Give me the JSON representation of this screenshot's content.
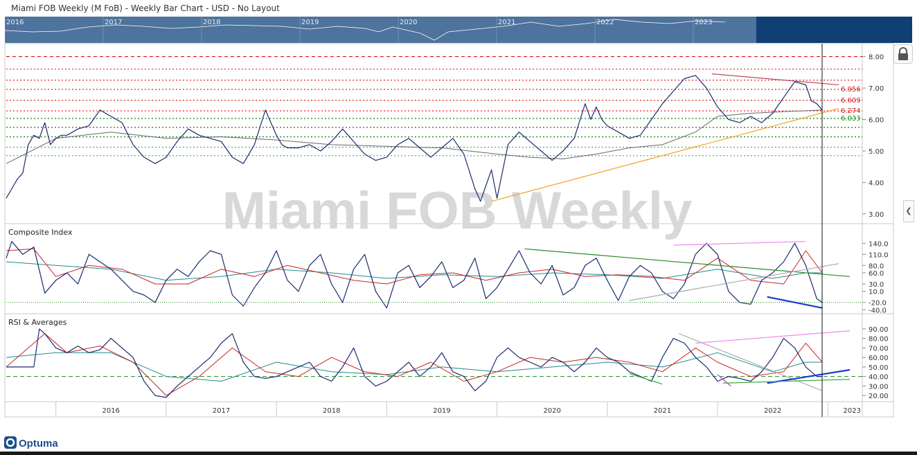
{
  "window": {
    "title": "Miami FOB Weekly (M FoB) - Weekly Bar Chart - USD - No Layout"
  },
  "watermark": "Miami FOB Weekly",
  "brand": {
    "name": "Optuma",
    "color": "#1b4f8a"
  },
  "overview": {
    "years": [
      "2016",
      "2017",
      "2018",
      "2019",
      "2020",
      "2021",
      "2022",
      "2023"
    ],
    "bg": "#4e739c",
    "selection_bg": "#0f3f73"
  },
  "chart_data": [
    {
      "type": "line",
      "panel": "price",
      "title": "",
      "ylim": [
        2.8,
        8.3
      ],
      "yticks": [
        3.0,
        4.0,
        5.0,
        6.0,
        7.0,
        8.0
      ],
      "ytick_labels": [
        "3.00",
        "4.00",
        "5.00",
        "6.00",
        "7.00",
        "8.00"
      ],
      "x_range": [
        2015.55,
        2023.3
      ],
      "xtick_labels": [
        "2016",
        "2017",
        "2018",
        "2019",
        "2020",
        "2021",
        "2022",
        "2023"
      ],
      "levels_red": [
        8.0,
        7.6,
        7.25,
        6.956,
        6.609,
        6.274
      ],
      "levels_green": [
        6.033,
        5.75,
        5.45,
        5.12,
        4.85
      ],
      "level_labels": [
        {
          "text": "6.956",
          "value": 6.956,
          "color": "#cc2222"
        },
        {
          "text": "6.609",
          "value": 6.609,
          "color": "#cc2222"
        },
        {
          "text": "6.274",
          "value": 6.274,
          "color": "#cc2222"
        },
        {
          "text": "6.033",
          "value": 6.033,
          "color": "#1e8a1e"
        }
      ],
      "series": [
        {
          "color": "#1a2a6c",
          "x": [
            2015.55,
            2015.6,
            2015.65,
            2015.7,
            2015.75,
            2015.8,
            2015.85,
            2015.9,
            2015.95,
            2016.0,
            2016.05,
            2016.1,
            2016.2,
            2016.3,
            2016.4,
            2016.5,
            2016.6,
            2016.7,
            2016.8,
            2016.9,
            2017.0,
            2017.1,
            2017.2,
            2017.3,
            2017.4,
            2017.5,
            2017.6,
            2017.7,
            2017.8,
            2017.9,
            2018.0,
            2018.05,
            2018.1,
            2018.2,
            2018.3,
            2018.4,
            2018.5,
            2018.6,
            2018.7,
            2018.8,
            2018.9,
            2019.0,
            2019.1,
            2019.2,
            2019.3,
            2019.4,
            2019.5,
            2019.6,
            2019.7,
            2019.8,
            2019.85,
            2019.9,
            2019.95,
            2020.0,
            2020.1,
            2020.2,
            2020.3,
            2020.4,
            2020.5,
            2020.6,
            2020.7,
            2020.8,
            2020.85,
            2020.9,
            2020.95,
            2021.0,
            2021.1,
            2021.2,
            2021.3,
            2021.4,
            2021.5,
            2021.6,
            2021.7,
            2021.8,
            2021.9,
            2022.0,
            2022.1,
            2022.2,
            2022.3,
            2022.4,
            2022.5,
            2022.6,
            2022.7,
            2022.8,
            2022.85,
            2022.9,
            2022.95
          ],
          "y": [
            3.5,
            3.8,
            4.1,
            4.3,
            5.2,
            5.5,
            5.4,
            5.9,
            5.2,
            5.4,
            5.5,
            5.5,
            5.7,
            5.8,
            6.3,
            6.1,
            5.9,
            5.2,
            4.8,
            4.6,
            4.8,
            5.3,
            5.7,
            5.5,
            5.4,
            5.3,
            4.8,
            4.6,
            5.2,
            6.3,
            5.5,
            5.2,
            5.1,
            5.1,
            5.2,
            5.0,
            5.3,
            5.7,
            5.3,
            4.9,
            4.7,
            4.8,
            5.2,
            5.4,
            5.1,
            4.8,
            5.1,
            5.4,
            4.9,
            3.8,
            3.4,
            3.9,
            4.4,
            3.5,
            5.2,
            5.6,
            5.3,
            5.0,
            4.7,
            5.0,
            5.4,
            6.5,
            6.0,
            6.4,
            6.0,
            5.8,
            5.6,
            5.4,
            5.5,
            6.0,
            6.5,
            6.9,
            7.3,
            7.4,
            7.0,
            6.4,
            6.0,
            5.9,
            6.1,
            5.9,
            6.2,
            6.7,
            7.2,
            7.1,
            6.6,
            6.5,
            6.3
          ]
        },
        {
          "color": "#666666",
          "x": [
            2015.55,
            2016.0,
            2016.5,
            2017.0,
            2017.5,
            2018.0,
            2018.5,
            2019.0,
            2019.5,
            2020.0,
            2020.3,
            2020.6,
            2020.9,
            2021.2,
            2021.5,
            2021.8,
            2022.0,
            2022.3,
            2022.6,
            2022.95
          ],
          "y": [
            4.6,
            5.4,
            5.6,
            5.4,
            5.45,
            5.35,
            5.2,
            5.15,
            5.1,
            4.9,
            4.8,
            4.75,
            4.9,
            5.1,
            5.2,
            5.6,
            6.1,
            6.2,
            6.25,
            6.3
          ]
        }
      ],
      "trendlines": [
        {
          "color": "#f2a01e",
          "x": [
            2019.95,
            2023.1
          ],
          "y": [
            3.4,
            6.35
          ]
        },
        {
          "color": "#b84a5a",
          "x": [
            2021.95,
            2023.1
          ],
          "y": [
            7.45,
            7.1
          ]
        }
      ]
    },
    {
      "type": "line",
      "panel": "composite",
      "title": "Composite Index",
      "ylim": [
        -45,
        165
      ],
      "yticks": [
        -40,
        -20,
        10,
        30,
        60,
        80,
        110,
        140
      ],
      "ytick_labels": [
        "-40.0",
        "-20.0",
        "10.0",
        "30.0",
        "60.0",
        "80.0",
        "110.0",
        "140.0"
      ],
      "x_range": [
        2015.55,
        2023.3
      ],
      "hline": -20,
      "series": [
        {
          "color": "#1a2a6c",
          "x": [
            2015.55,
            2015.6,
            2015.7,
            2015.8,
            2015.9,
            2016.0,
            2016.1,
            2016.2,
            2016.3,
            2016.4,
            2016.5,
            2016.6,
            2016.7,
            2016.8,
            2016.9,
            2017.0,
            2017.1,
            2017.2,
            2017.3,
            2017.4,
            2017.5,
            2017.6,
            2017.7,
            2017.8,
            2017.9,
            2018.0,
            2018.1,
            2018.2,
            2018.3,
            2018.4,
            2018.5,
            2018.6,
            2018.7,
            2018.8,
            2018.9,
            2019.0,
            2019.1,
            2019.2,
            2019.3,
            2019.4,
            2019.5,
            2019.6,
            2019.7,
            2019.8,
            2019.9,
            2020.0,
            2020.1,
            2020.2,
            2020.3,
            2020.4,
            2020.5,
            2020.6,
            2020.7,
            2020.8,
            2020.9,
            2021.0,
            2021.1,
            2021.2,
            2021.3,
            2021.4,
            2021.5,
            2021.6,
            2021.7,
            2021.8,
            2021.9,
            2022.0,
            2022.1,
            2022.2,
            2022.3,
            2022.4,
            2022.5,
            2022.6,
            2022.7,
            2022.8,
            2022.9,
            2022.95
          ],
          "y": [
            100,
            145,
            110,
            130,
            5,
            40,
            60,
            30,
            110,
            90,
            70,
            40,
            10,
            0,
            -20,
            40,
            70,
            50,
            90,
            120,
            110,
            0,
            -30,
            20,
            60,
            120,
            40,
            10,
            80,
            110,
            30,
            -20,
            70,
            110,
            10,
            -35,
            60,
            80,
            20,
            50,
            90,
            20,
            40,
            100,
            -10,
            20,
            70,
            120,
            60,
            30,
            80,
            0,
            20,
            80,
            100,
            40,
            -15,
            50,
            80,
            60,
            10,
            -10,
            30,
            110,
            140,
            110,
            10,
            -20,
            -25,
            40,
            60,
            90,
            140,
            80,
            -10,
            -20
          ]
        },
        {
          "color": "#cc2222",
          "x": [
            2015.55,
            2015.8,
            2016.0,
            2016.3,
            2016.6,
            2016.9,
            2017.2,
            2017.5,
            2017.8,
            2018.1,
            2018.4,
            2018.7,
            2019.0,
            2019.3,
            2019.6,
            2019.9,
            2020.2,
            2020.5,
            2020.8,
            2021.1,
            2021.4,
            2021.7,
            2022.0,
            2022.3,
            2022.6,
            2022.8,
            2022.95
          ],
          "y": [
            120,
            125,
            50,
            80,
            70,
            30,
            30,
            70,
            50,
            80,
            60,
            40,
            30,
            55,
            60,
            40,
            60,
            70,
            50,
            55,
            50,
            40,
            100,
            40,
            30,
            120,
            60
          ]
        },
        {
          "color": "#1f8a8a",
          "x": [
            2015.55,
            2016.0,
            2016.5,
            2017.0,
            2017.5,
            2018.0,
            2018.5,
            2019.0,
            2019.5,
            2020.0,
            2020.5,
            2021.0,
            2021.5,
            2022.0,
            2022.5,
            2022.8,
            2022.95
          ],
          "y": [
            90,
            80,
            70,
            40,
            50,
            70,
            60,
            45,
            55,
            50,
            60,
            55,
            45,
            70,
            45,
            60,
            60
          ]
        }
      ],
      "trendlines": [
        {
          "color": "#2a8a2a",
          "x": [
            2020.25,
            2023.2
          ],
          "y": [
            125,
            50
          ]
        },
        {
          "color": "#ee88ee",
          "x": [
            2021.6,
            2022.8
          ],
          "y": [
            135,
            145
          ]
        },
        {
          "color": "#aaaaaa",
          "x": [
            2021.2,
            2023.1
          ],
          "y": [
            -15,
            85
          ]
        },
        {
          "color": "#1a3ad0",
          "x": [
            2022.45,
            2022.95
          ],
          "y": [
            -5,
            -35
          ]
        }
      ]
    },
    {
      "type": "line",
      "panel": "rsi",
      "title": "RSI & Averages",
      "ylim": [
        15,
        95
      ],
      "yticks": [
        20,
        30,
        40,
        50,
        60,
        70,
        80,
        90
      ],
      "ytick_labels": [
        "20.00",
        "30.00",
        "40.00",
        "50.00",
        "60.00",
        "70.00",
        "80.00",
        "90.00"
      ],
      "x_range": [
        2015.55,
        2023.3
      ],
      "hline": 40,
      "series": [
        {
          "color": "#1a2a6c",
          "x": [
            2015.55,
            2015.8,
            2015.85,
            2015.9,
            2016.0,
            2016.1,
            2016.2,
            2016.3,
            2016.4,
            2016.5,
            2016.6,
            2016.7,
            2016.8,
            2016.9,
            2017.0,
            2017.1,
            2017.2,
            2017.3,
            2017.4,
            2017.5,
            2017.6,
            2017.7,
            2017.8,
            2017.9,
            2018.0,
            2018.1,
            2018.2,
            2018.3,
            2018.4,
            2018.5,
            2018.6,
            2018.7,
            2018.8,
            2018.9,
            2019.0,
            2019.1,
            2019.2,
            2019.3,
            2019.4,
            2019.5,
            2019.6,
            2019.7,
            2019.8,
            2019.9,
            2020.0,
            2020.1,
            2020.2,
            2020.3,
            2020.4,
            2020.5,
            2020.6,
            2020.7,
            2020.8,
            2020.9,
            2021.0,
            2021.1,
            2021.2,
            2021.3,
            2021.4,
            2021.5,
            2021.6,
            2021.7,
            2021.8,
            2021.9,
            2022.0,
            2022.1,
            2022.2,
            2022.3,
            2022.4,
            2022.5,
            2022.6,
            2022.7,
            2022.8,
            2022.9,
            2022.95
          ],
          "y": [
            50,
            50,
            90,
            85,
            70,
            65,
            72,
            65,
            68,
            80,
            70,
            60,
            35,
            20,
            18,
            30,
            40,
            50,
            60,
            75,
            85,
            55,
            40,
            38,
            40,
            45,
            50,
            55,
            40,
            35,
            50,
            70,
            40,
            30,
            35,
            45,
            55,
            40,
            50,
            65,
            45,
            40,
            25,
            35,
            60,
            70,
            60,
            55,
            50,
            60,
            55,
            45,
            55,
            70,
            60,
            55,
            45,
            40,
            35,
            60,
            80,
            75,
            60,
            50,
            35,
            40,
            38,
            35,
            45,
            60,
            80,
            70,
            50,
            40,
            40
          ]
        },
        {
          "color": "#cc2222",
          "x": [
            2015.55,
            2015.9,
            2016.1,
            2016.4,
            2016.7,
            2017.0,
            2017.3,
            2017.6,
            2017.9,
            2018.2,
            2018.5,
            2018.8,
            2019.1,
            2019.4,
            2019.7,
            2020.0,
            2020.3,
            2020.6,
            2020.9,
            2021.2,
            2021.5,
            2021.8,
            2022.0,
            2022.3,
            2022.6,
            2022.8,
            2022.95
          ],
          "y": [
            50,
            85,
            65,
            72,
            55,
            20,
            40,
            70,
            45,
            40,
            60,
            45,
            40,
            55,
            35,
            45,
            60,
            55,
            60,
            55,
            45,
            70,
            55,
            40,
            45,
            75,
            55
          ]
        },
        {
          "color": "#1f8a8a",
          "x": [
            2015.55,
            2016.0,
            2016.5,
            2017.0,
            2017.5,
            2018.0,
            2018.5,
            2019.0,
            2019.5,
            2020.0,
            2020.5,
            2021.0,
            2021.5,
            2022.0,
            2022.5,
            2022.8,
            2022.95
          ],
          "y": [
            60,
            65,
            65,
            40,
            35,
            55,
            45,
            42,
            50,
            45,
            50,
            55,
            50,
            65,
            45,
            55,
            55
          ]
        }
      ],
      "trendlines": [
        {
          "color": "#ee88ee",
          "x": [
            2021.8,
            2023.2
          ],
          "y": [
            75,
            88
          ]
        },
        {
          "color": "#aaaaaa",
          "x": [
            2021.65,
            2022.95
          ],
          "y": [
            85,
            25
          ]
        },
        {
          "color": "#1a3ad0",
          "x": [
            2022.45,
            2023.2
          ],
          "y": [
            33,
            47
          ]
        },
        {
          "color": "#44aa44",
          "x": [
            2021.2,
            2021.5
          ],
          "y": [
            43,
            32
          ]
        },
        {
          "color": "#cc33cc",
          "x": [
            2022.0,
            2022.12
          ],
          "y": [
            42,
            30
          ]
        },
        {
          "color": "#44aa44",
          "x": [
            2022.05,
            2023.2
          ],
          "y": [
            33,
            37
          ]
        }
      ]
    }
  ]
}
